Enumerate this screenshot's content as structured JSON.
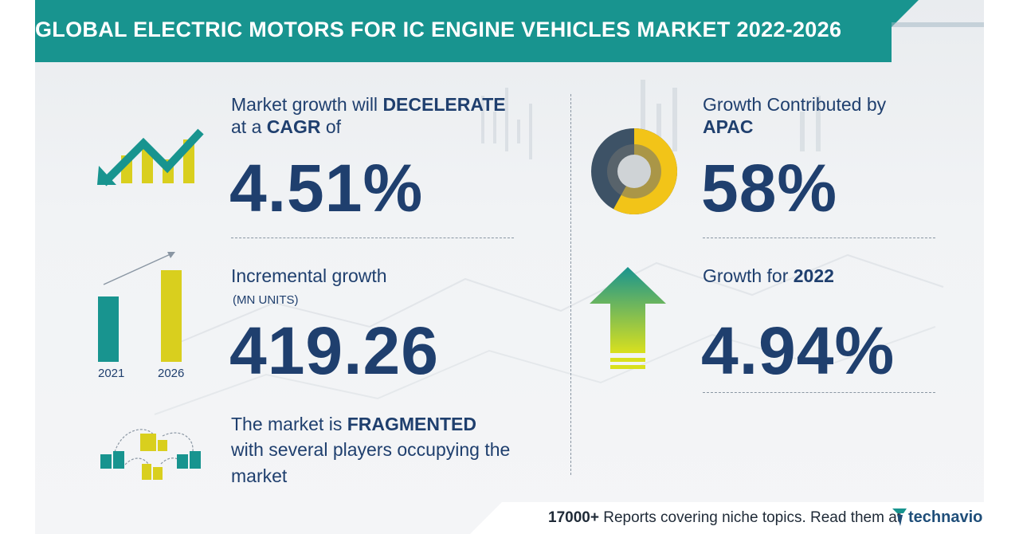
{
  "header": {
    "title": "GLOBAL ELECTRIC MOTORS FOR IC ENGINE VEHICLES MARKET 2022-2026"
  },
  "cagr": {
    "line1_prefix": "Market growth will ",
    "line1_bold": "DECELERATE",
    "line2_prefix": "at a ",
    "line2_bold": "CAGR",
    "line2_suffix": " of",
    "value": "4.51%"
  },
  "incremental": {
    "label": "Incremental growth",
    "unit": "(MN UNITS)",
    "value": "419.26",
    "year_start": "2021",
    "year_end": "2026"
  },
  "market": {
    "line1_prefix": "The market is ",
    "line1_bold": "FRAGMENTED",
    "line2": "with several players occupying the",
    "line3": "market"
  },
  "region": {
    "label": "Growth Contributed by",
    "region_name": "APAC",
    "value": "58%",
    "share": 0.58
  },
  "growth_year": {
    "label": "Growth for ",
    "year": "2022",
    "value": "4.94%"
  },
  "footer": {
    "count": "17000+",
    "text": " Reports covering niche topics. Read them at",
    "brand": "technavio"
  },
  "colors": {
    "teal": "#18948f",
    "navy": "#1f3f6e",
    "yellow": "#d9cf1e",
    "gold": "#f2c418",
    "slate": "#3d5266"
  }
}
